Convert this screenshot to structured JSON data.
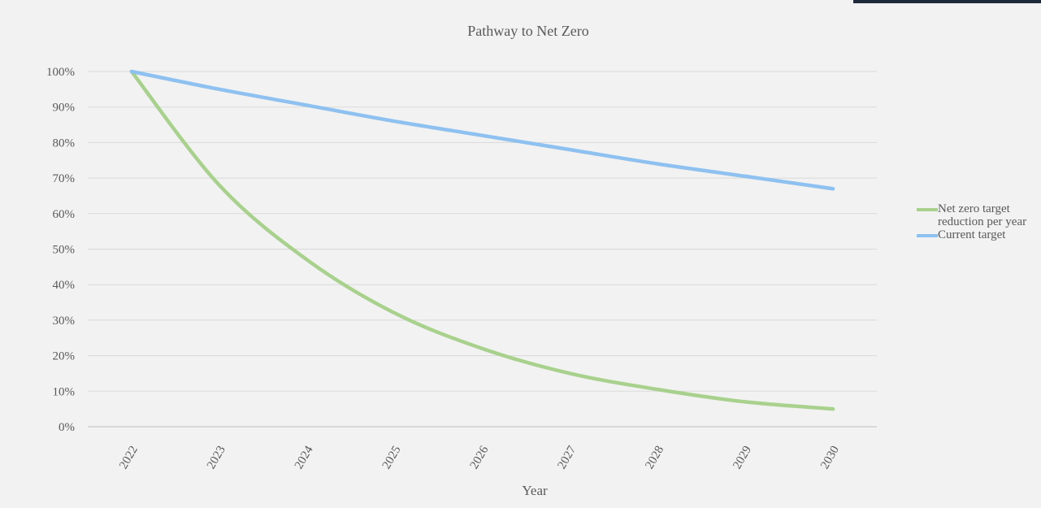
{
  "chart_data": {
    "type": "line",
    "title": "Pathway to Net Zero",
    "x_label": "Year",
    "categories": [
      "2022",
      "2023",
      "2024",
      "2025",
      "2026",
      "2027",
      "2028",
      "2029",
      "2030"
    ],
    "series": [
      {
        "name": "Net zero target reduction per year",
        "color": "#a9d18e",
        "values": [
          100,
          68,
          47,
          32,
          22,
          15,
          10.5,
          7,
          5
        ]
      },
      {
        "name": "Current target",
        "color": "#8ec0f0",
        "values": [
          100,
          95,
          90.5,
          86,
          82,
          78,
          74,
          70.5,
          67
        ]
      }
    ],
    "ylim": [
      0,
      100
    ],
    "yticks": [
      {
        "value": 0,
        "label": "0%"
      },
      {
        "value": 10,
        "label": "10%"
      },
      {
        "value": 20,
        "label": "20%"
      },
      {
        "value": 30,
        "label": "30%"
      },
      {
        "value": 40,
        "label": "40%"
      },
      {
        "value": 50,
        "label": "50%"
      },
      {
        "value": 60,
        "label": "60%"
      },
      {
        "value": 70,
        "label": "70%"
      },
      {
        "value": 80,
        "label": "80%"
      },
      {
        "value": 90,
        "label": "90%"
      },
      {
        "value": 100,
        "label": "100%"
      }
    ],
    "grid": true,
    "legend": "right"
  }
}
